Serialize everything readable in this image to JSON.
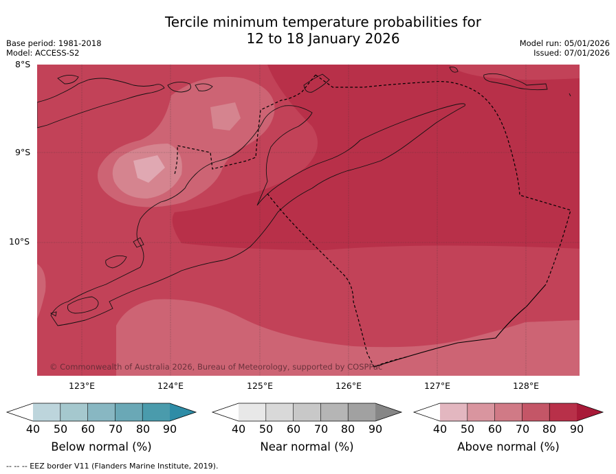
{
  "title": {
    "line1": "Tercile minimum temperature probabilities for",
    "line2": "12 to 18 January 2026"
  },
  "meta": {
    "base_period": "Base period: 1981-2018",
    "model": "Model: ACCESS-S2",
    "model_run": "Model run: 05/01/2026",
    "issued": "Issued: 07/01/2026"
  },
  "map": {
    "lat_labels": [
      "8°S",
      "9°S",
      "10°S"
    ],
    "lon_labels": [
      "123°E",
      "124°E",
      "125°E",
      "126°E",
      "127°E",
      "128°E"
    ],
    "copyright": "© Commonwealth of Australia 2026, Bureau of Meteorology, supported by COSPPac"
  },
  "colorbars": {
    "ticks": [
      "40",
      "50",
      "60",
      "70",
      "80",
      "90"
    ],
    "below": {
      "label": "Below normal (%)",
      "colors": [
        "#ffffff",
        "#bdd5dc",
        "#a5c8ce",
        "#88b7c2",
        "#6aa8b6",
        "#4a9bac",
        "#2e8ca6"
      ]
    },
    "near": {
      "label": "Near normal (%)",
      "colors": [
        "#ffffff",
        "#e8e8e8",
        "#d9d9d9",
        "#c8c8c8",
        "#b5b5b5",
        "#a1a1a1",
        "#868686"
      ]
    },
    "above": {
      "label": "Above normal (%)",
      "colors": [
        "#ffffff",
        "#e3b7c0",
        "#d9959f",
        "#d07a86",
        "#c45667",
        "#b83049",
        "#a81a38"
      ]
    }
  },
  "footnote": "-- -- -- EEZ border V11 (Flanders Marine Institute, 2019)."
}
